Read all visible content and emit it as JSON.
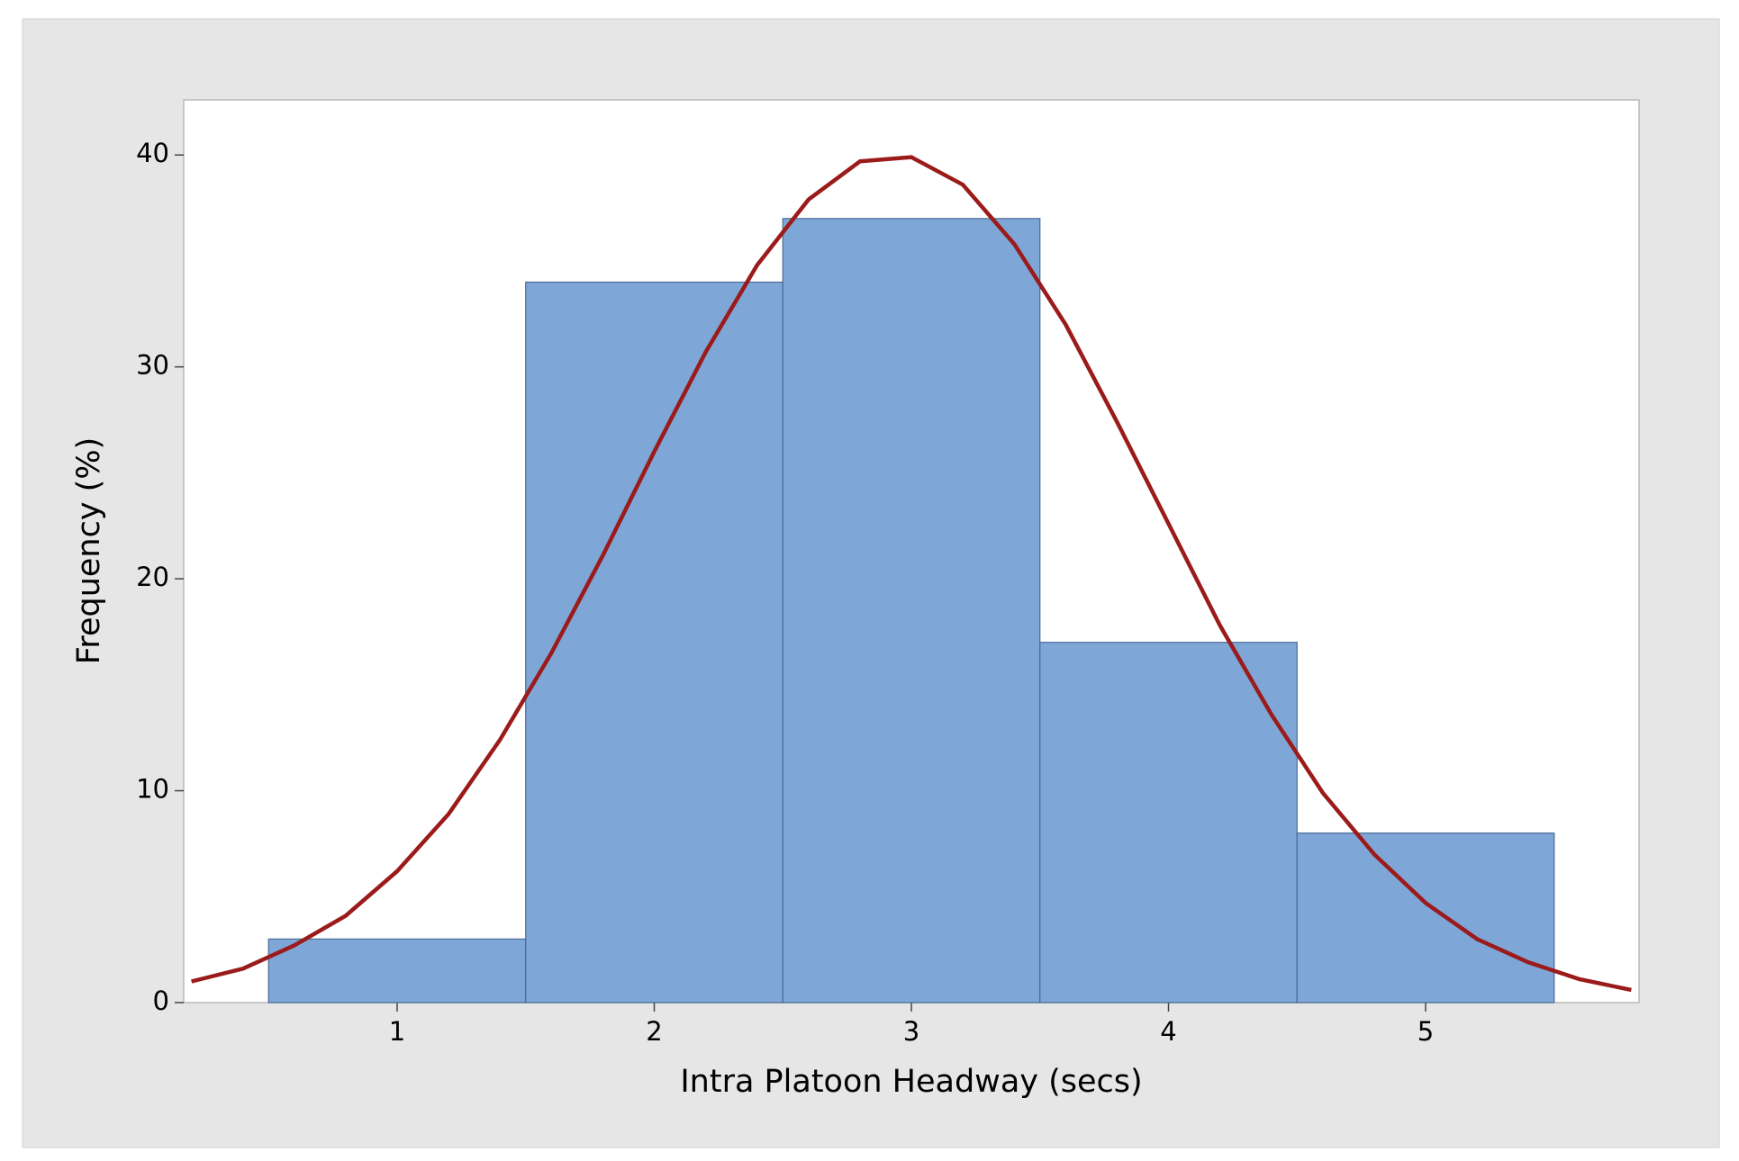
{
  "chart_data": {
    "type": "histogram",
    "x_label": "Intra Platoon Headway (secs)",
    "y_label": "Frequency (%)",
    "bins": [
      0.5,
      1.5,
      2.5,
      3.5,
      4.5,
      5.5
    ],
    "values": [
      3,
      34,
      37,
      17,
      8
    ],
    "color": "#7ea7d8",
    "fit": {
      "type": "line",
      "color": "#9b1b1b",
      "x": [
        0.2,
        0.4,
        0.6,
        0.8,
        1.0,
        1.2,
        1.4,
        1.6,
        1.8,
        2.0,
        2.2,
        2.4,
        2.6,
        2.8,
        3.0,
        3.2,
        3.4,
        3.6,
        3.8,
        4.0,
        4.2,
        4.4,
        4.6,
        4.8,
        5.0,
        5.2,
        5.4,
        5.6,
        5.8
      ],
      "values": [
        1.0,
        1.6,
        2.7,
        4.1,
        6.2,
        8.9,
        12.4,
        16.5,
        21.1,
        26.0,
        30.7,
        34.8,
        37.9,
        39.7,
        39.9,
        38.6,
        35.8,
        32.0,
        27.4,
        22.6,
        17.8,
        13.6,
        9.9,
        7.0,
        4.7,
        3.0,
        1.9,
        1.1,
        0.6
      ]
    },
    "xlim": [
      0.17,
      5.83
    ],
    "ylim": [
      0,
      42.6
    ],
    "xticks": [
      1,
      2,
      3,
      4,
      5
    ],
    "yticks": [
      0,
      10,
      20,
      30,
      40
    ]
  }
}
